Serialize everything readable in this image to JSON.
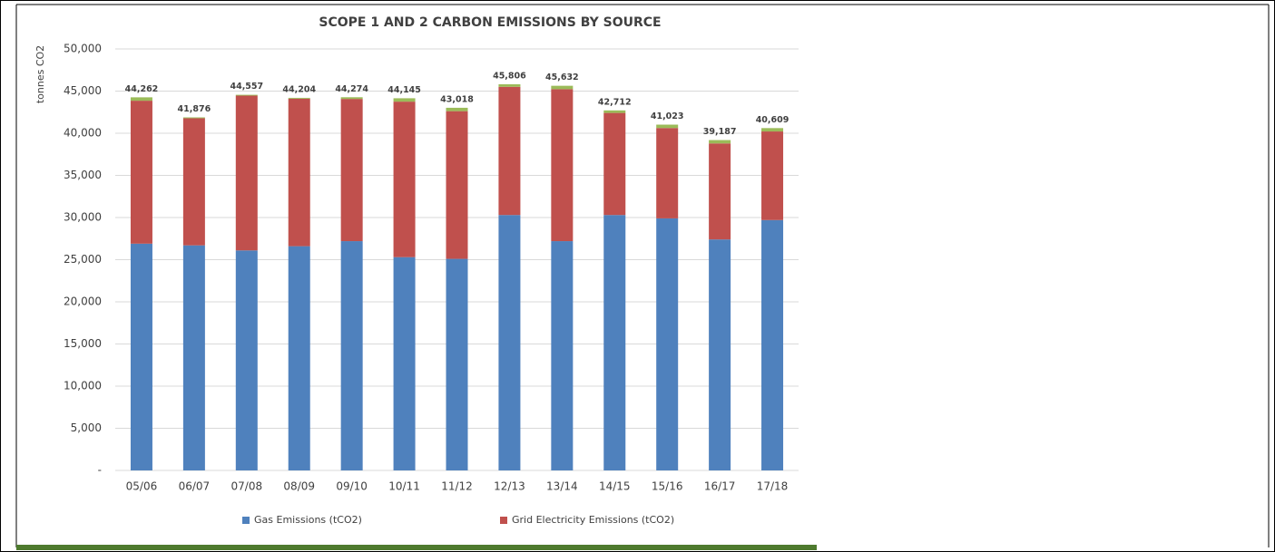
{
  "chart_data": {
    "type": "stacked_bar",
    "title": "SCOPE 1 AND 2 CARBON EMISSIONS BY SOURCE",
    "y_label": "tonnes CO2",
    "categories": [
      "05/06",
      "06/07",
      "07/08",
      "08/09",
      "09/10",
      "10/11",
      "11/12",
      "12/13",
      "13/14",
      "14/15",
      "15/16",
      "16/17",
      "17/18"
    ],
    "series": [
      {
        "name": "Gas Emissions (tCO2)",
        "color": "#4f81bd",
        "values": [
          26900,
          26700,
          26100,
          26600,
          27200,
          25300,
          25100,
          30300,
          27200,
          30300,
          29900,
          27400,
          29700
        ]
      },
      {
        "name": "Grid Electricity Emissions (tCO2)",
        "color": "#c0504d",
        "values": [
          16960,
          15080,
          18360,
          17500,
          16870,
          18450,
          17520,
          15210,
          18030,
          12110,
          10720,
          11390,
          10510
        ]
      },
      {
        "color": "#9bbb59",
        "values": [
          400,
          100,
          100,
          100,
          200,
          400,
          400,
          300,
          400,
          300,
          400,
          400,
          400
        ]
      }
    ],
    "totals": {
      "values": [
        44262,
        41876,
        44557,
        44204,
        44274,
        44145,
        43018,
        45806,
        45632,
        42712,
        41023,
        39187,
        40609
      ],
      "value_labels": [
        "44,262",
        "41,876",
        "44,557",
        "44,204",
        "44,274",
        "44,145",
        "43,018",
        "45,806",
        "45,632",
        "42,712",
        "41,023",
        "39,187",
        "40,609"
      ]
    },
    "ylim": [
      0,
      50000
    ],
    "yticks": [
      {
        "value": 0,
        "label": "-"
      },
      {
        "value": 5000,
        "label": "5,000"
      },
      {
        "value": 10000,
        "label": "10,000"
      },
      {
        "value": 15000,
        "label": "15,000"
      },
      {
        "value": 20000,
        "label": "20,000"
      },
      {
        "value": 25000,
        "label": "25,000"
      },
      {
        "value": 30000,
        "label": "30,000"
      },
      {
        "value": 35000,
        "label": "35,000"
      },
      {
        "value": 40000,
        "label": "40,000"
      },
      {
        "value": 45000,
        "label": "45,000"
      },
      {
        "value": 50000,
        "label": "50,000"
      }
    ],
    "grid": true
  }
}
